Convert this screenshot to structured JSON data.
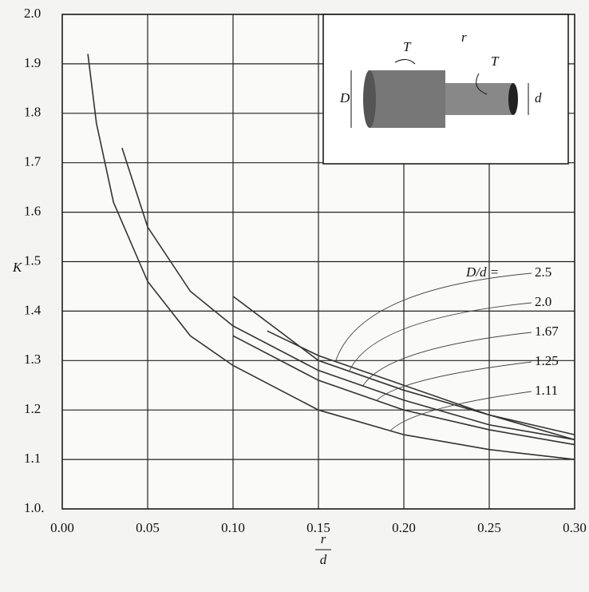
{
  "chart_data": {
    "type": "line",
    "xlabel_top": "r",
    "xlabel_bottom": "d",
    "ylabel": "K",
    "legend_title": "D/d  =",
    "xlim": [
      0,
      0.3
    ],
    "ylim": [
      1.0,
      2.0
    ],
    "xticks": [
      {
        "value": 0,
        "label": "0.00"
      },
      {
        "value": 0.05,
        "label": "0.05"
      },
      {
        "value": 0.1,
        "label": "0.10"
      },
      {
        "value": 0.15,
        "label": "0.15"
      },
      {
        "value": 0.2,
        "label": "0.20"
      },
      {
        "value": 0.25,
        "label": "0.25"
      },
      {
        "value": 0.3,
        "label": "0.30"
      }
    ],
    "yticks": [
      {
        "value": 1.0,
        "label": "1.0."
      },
      1.1,
      1.2,
      1.3,
      1.4,
      1.5,
      1.6,
      1.7,
      1.8,
      1.9,
      {
        "value": 2.0,
        "label": "2.0"
      }
    ],
    "grid": true,
    "series": [
      {
        "name": "2.5",
        "color": "#333333",
        "x": [
          0.12,
          0.15,
          0.2,
          0.25,
          0.3
        ],
        "values": [
          1.36,
          1.31,
          1.25,
          1.19,
          1.15
        ]
      },
      {
        "name": "2.0",
        "color": "#333333",
        "x": [
          0.1,
          0.15,
          0.2,
          0.25,
          0.3
        ],
        "values": [
          1.43,
          1.3,
          1.24,
          1.19,
          1.14
        ]
      },
      {
        "name": "1.67",
        "color": "#333333",
        "x": [
          0.035,
          0.05,
          0.075,
          0.1,
          0.15,
          0.2,
          0.25,
          0.3
        ],
        "values": [
          1.73,
          1.57,
          1.44,
          1.37,
          1.28,
          1.22,
          1.17,
          1.14
        ]
      },
      {
        "name": "1.25",
        "color": "#333333",
        "x": [
          0.1,
          0.15,
          0.2,
          0.25,
          0.3
        ],
        "values": [
          1.35,
          1.26,
          1.2,
          1.16,
          1.13
        ]
      },
      {
        "name": "1.11",
        "color": "#333333",
        "x": [
          0.015,
          0.02,
          0.03,
          0.05,
          0.075,
          0.1,
          0.15,
          0.2,
          0.25,
          0.3
        ],
        "values": [
          1.92,
          1.78,
          1.62,
          1.46,
          1.35,
          1.29,
          1.2,
          1.15,
          1.12,
          1.1
        ]
      }
    ],
    "inset": {
      "torque_left": "T",
      "fillet": "r",
      "torque_right": "T",
      "big_diameter": "D",
      "small_diameter": "d"
    }
  }
}
